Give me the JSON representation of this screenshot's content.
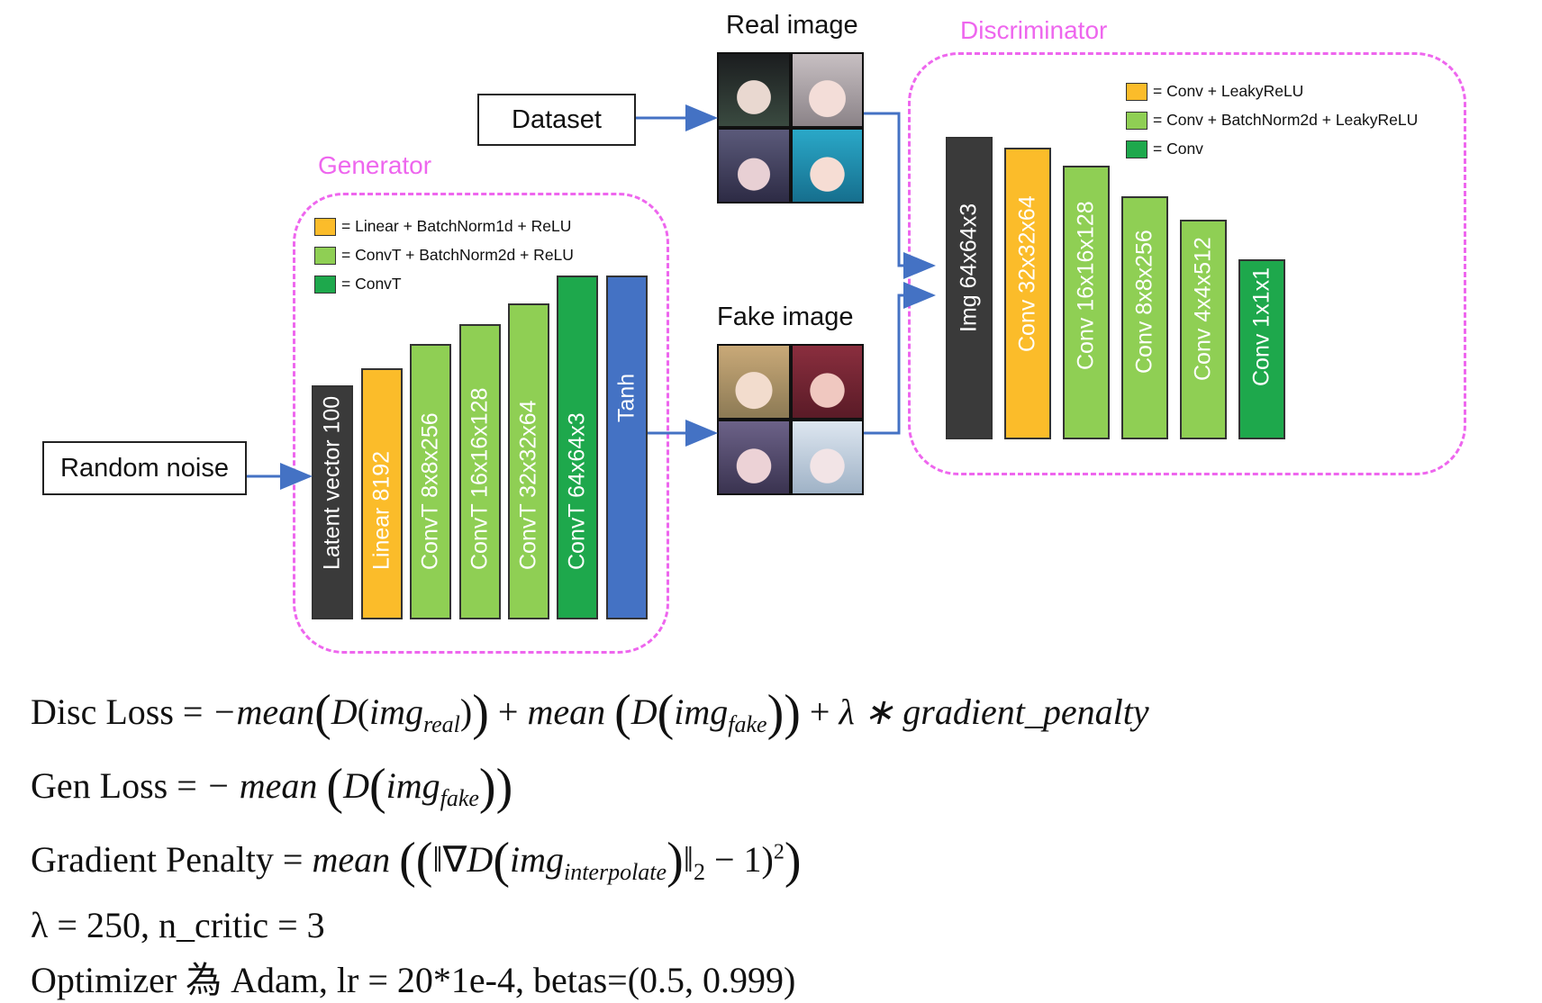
{
  "captions": {
    "real_image": "Real image",
    "fake_image": "Fake image",
    "dataset": "Dataset",
    "random_noise": "Random noise",
    "generator": "Generator",
    "discriminator": "Discriminator"
  },
  "generator_legend": [
    {
      "color": "#fbbc2a",
      "text": "= Linear + BatchNorm1d + ReLU"
    },
    {
      "color": "#8fcf54",
      "text": "= ConvT + BatchNorm2d + ReLU"
    },
    {
      "color": "#1ea84c",
      "text": "= ConvT"
    }
  ],
  "discriminator_legend": [
    {
      "color": "#fbbc2a",
      "text": "= Conv + LeakyReLU"
    },
    {
      "color": "#8fcf54",
      "text": "= Conv + BatchNorm2d + LeakyReLU"
    },
    {
      "color": "#1ea84c",
      "text": "= Conv"
    }
  ],
  "generator_layers": [
    {
      "label": "Latent vector 100",
      "color": "#3a3a3a"
    },
    {
      "label": "Linear 8192",
      "color": "#fbbc2a"
    },
    {
      "label": "ConvT 8x8x256",
      "color": "#8fcf54"
    },
    {
      "label": "ConvT 16x16x128",
      "color": "#8fcf54"
    },
    {
      "label": "ConvT 32x32x64",
      "color": "#8fcf54"
    },
    {
      "label": "ConvT 64x64x3",
      "color": "#1ea84c"
    },
    {
      "label": "Tanh",
      "color": "#4472c4"
    }
  ],
  "discriminator_layers": [
    {
      "label": "Img 64x64x3",
      "color": "#3a3a3a"
    },
    {
      "label": "Conv 32x32x64",
      "color": "#fbbc2a"
    },
    {
      "label": "Conv 16x16x128",
      "color": "#8fcf54"
    },
    {
      "label": "Conv 8x8x256",
      "color": "#8fcf54"
    },
    {
      "label": "Conv 4x4x512",
      "color": "#8fcf54"
    },
    {
      "label": "Conv 1x1x1",
      "color": "#1ea84c"
    }
  ],
  "formulas": {
    "disc_loss_prefix": "Disc Loss = ",
    "gen_loss_prefix": "Gen Loss = ",
    "gp_prefix": "Gradient Penalty = ",
    "hyperparams": "λ = 250, n_critic = 3",
    "optimizer": "Optimizer 為 Adam, lr = 20*1e-4, betas=(0.5, 0.999)"
  }
}
